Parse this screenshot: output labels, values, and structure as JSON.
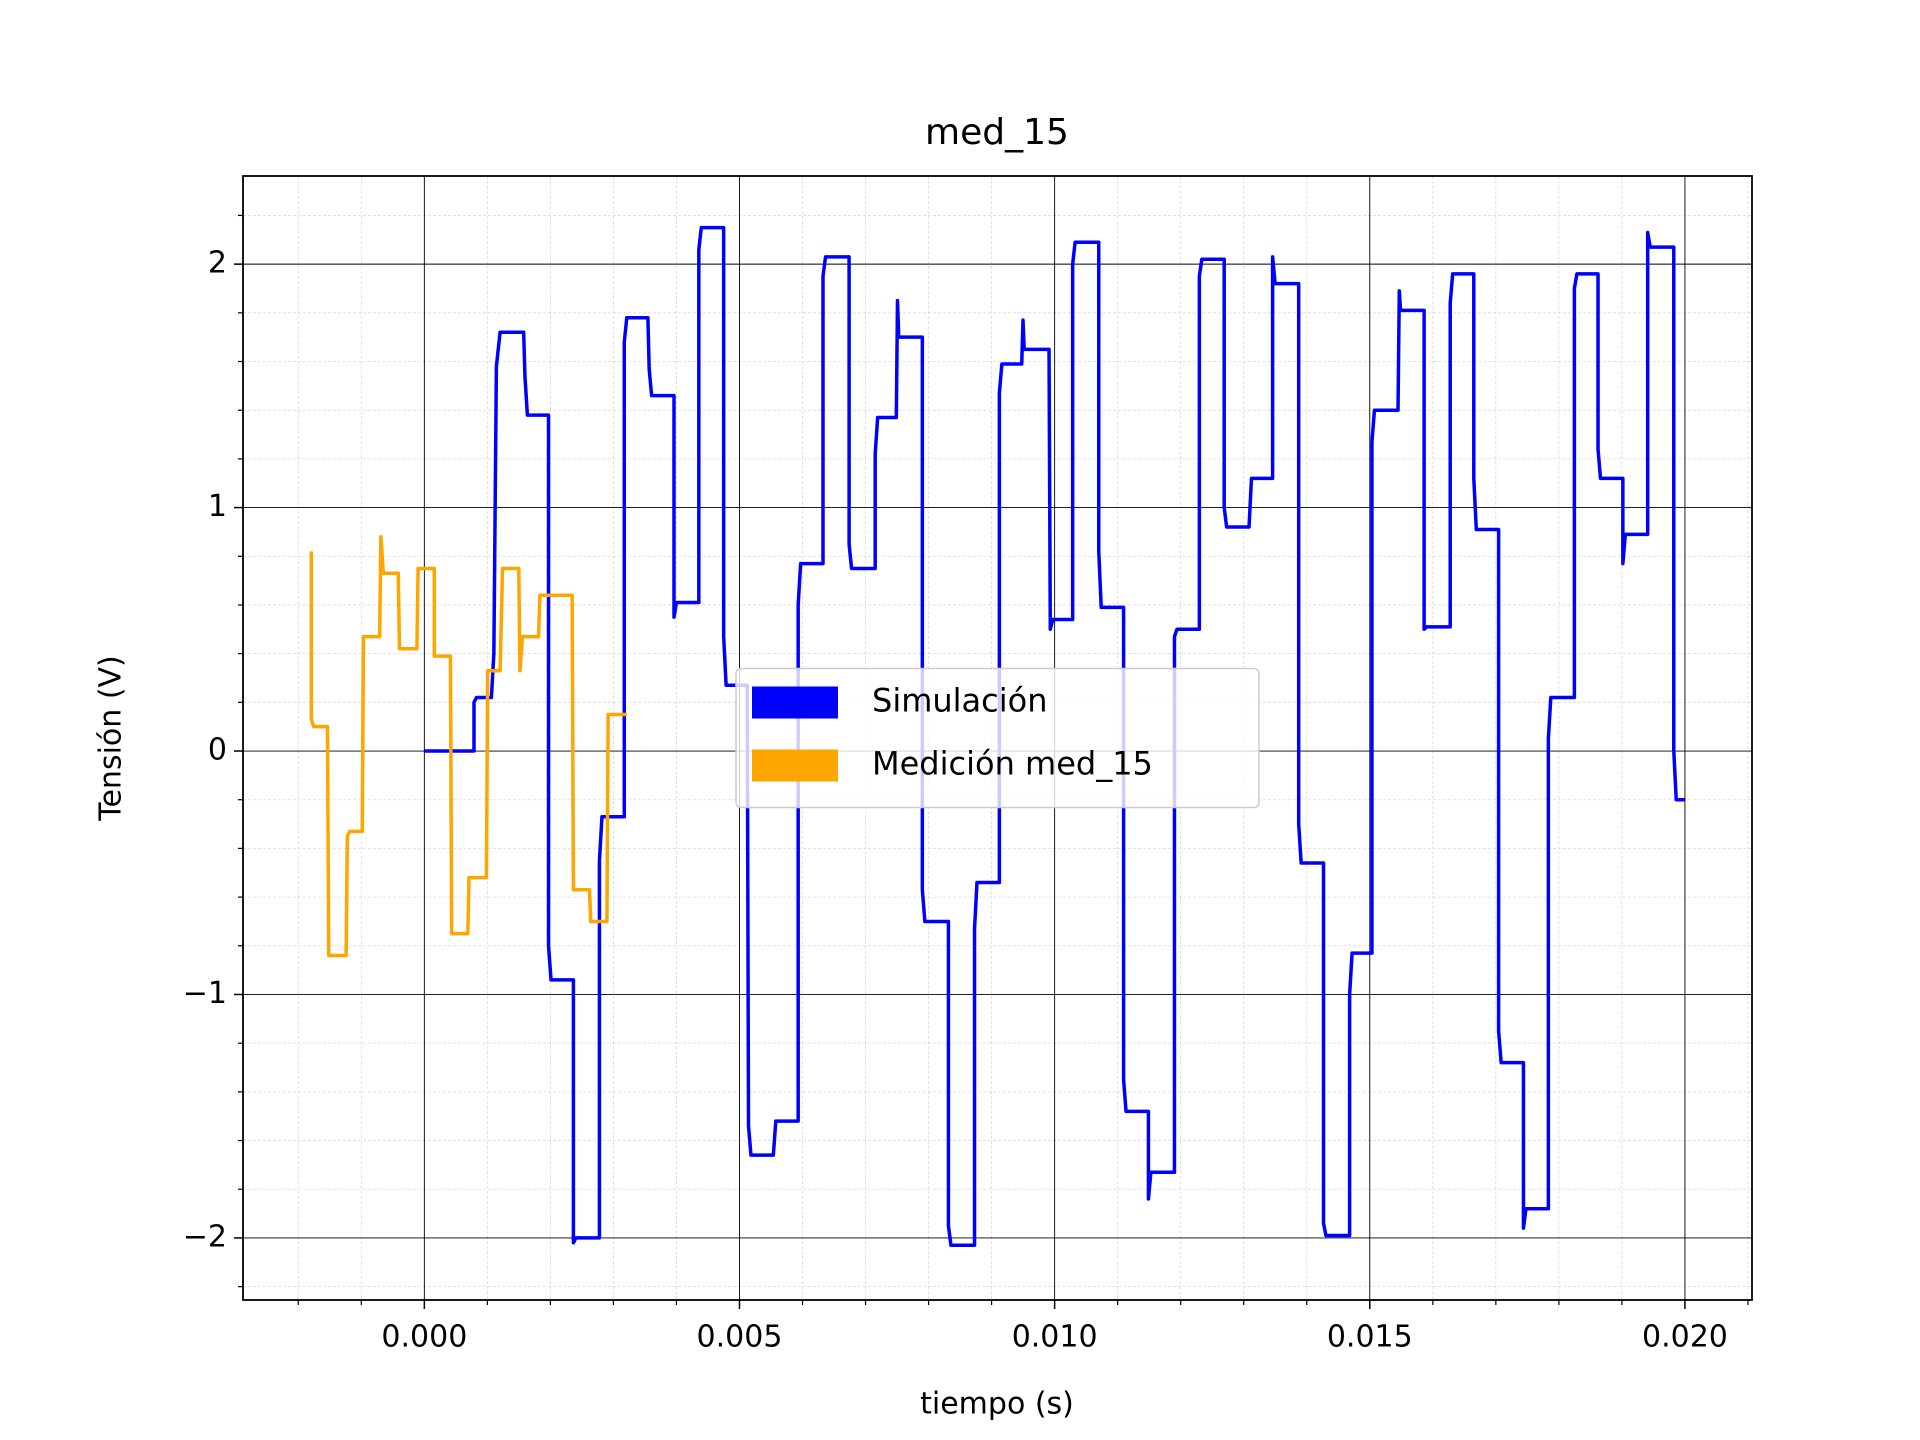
{
  "chart_data": {
    "type": "line",
    "title": "med_15",
    "x_label": "tiempo (s)",
    "y_label": "Tensión (V)",
    "xlim": [
      -0.002877,
      0.021064
    ],
    "ylim": [
      -2.255,
      2.362
    ],
    "xticks": [
      {
        "value": 0,
        "label": "0.000"
      },
      {
        "value": 0.005,
        "label": "0.005"
      },
      {
        "value": 0.01,
        "label": "0.010"
      },
      {
        "value": 0.015,
        "label": "0.015"
      },
      {
        "value": 0.02,
        "label": "0.020"
      }
    ],
    "yticks": [
      {
        "value": -2,
        "label": "−2"
      },
      {
        "value": -1,
        "label": "−1"
      },
      0,
      1,
      2
    ],
    "xminorticks": [
      -0.002,
      -0.001,
      0.001,
      0.002,
      0.003,
      0.004,
      0.006,
      0.007,
      0.008,
      0.009,
      0.011,
      0.012,
      0.013,
      0.014,
      0.016,
      0.017,
      0.018,
      0.019,
      0.021
    ],
    "yminorticks": [
      -2.2,
      -1.8,
      -1.6,
      -1.4,
      -1.2,
      -0.8,
      -0.6,
      -0.4,
      -0.2,
      0.2,
      0.4,
      0.6,
      0.8,
      1.2,
      1.4,
      1.6,
      1.8,
      2.2
    ],
    "grid": true,
    "legend_position": "center",
    "series": [
      {
        "name": "Simulación",
        "color": "#0000ff",
        "x": [
          0,
          0.000788,
          0.000788,
          0.000828,
          0.001064,
          0.001103,
          0.001143,
          0.001202,
          0.001576,
          0.001596,
          0.001635,
          0.00197,
          0.00197,
          0.00201,
          0.002365,
          0.002365,
          0.002404,
          0.002778,
          0.002778,
          0.002818,
          0.003172,
          0.003172,
          0.003212,
          0.003547,
          0.003567,
          0.003606,
          0.003961,
          0.003961,
          0.004,
          0.004355,
          0.004355,
          0.004394,
          0.004749,
          0.004749,
          0.004788,
          0.005123,
          0.005143,
          0.005182,
          0.005537,
          0.005576,
          0.005931,
          0.005931,
          0.00597,
          0.006325,
          0.006325,
          0.006365,
          0.006739,
          0.006739,
          0.006778,
          0.007153,
          0.007153,
          0.007192,
          0.007488,
          0.007507,
          0.007527,
          0.007901,
          0.007901,
          0.007941,
          0.008315,
          0.008315,
          0.008355,
          0.008729,
          0.008729,
          0.008768,
          0.009123,
          0.009123,
          0.009163,
          0.009478,
          0.009498,
          0.009517,
          0.009911,
          0.009931,
          0.00997,
          0.010286,
          0.010286,
          0.010325,
          0.0107,
          0.0107,
          0.010739,
          0.011094,
          0.011094,
          0.011133,
          0.011488,
          0.011488,
          0.011527,
          0.011901,
          0.011901,
          0.011941,
          0.012296,
          0.012296,
          0.012335,
          0.01269,
          0.01269,
          0.012729,
          0.013084,
          0.013123,
          0.013458,
          0.013458,
          0.013498,
          0.013872,
          0.013872,
          0.013911,
          0.014266,
          0.014266,
          0.014305,
          0.01468,
          0.01468,
          0.014719,
          0.015034,
          0.015034,
          0.015074,
          0.015448,
          0.015468,
          0.015488,
          0.015862,
          0.015862,
          0.015901,
          0.016276,
          0.016276,
          0.016315,
          0.01665,
          0.01665,
          0.01669,
          0.017044,
          0.017044,
          0.017084,
          0.017438,
          0.017438,
          0.017478,
          0.017833,
          0.017833,
          0.017872,
          0.018246,
          0.018246,
          0.018286,
          0.018621,
          0.018621,
          0.01866,
          0.019015,
          0.019015,
          0.019054,
          0.019409,
          0.019409,
          0.019448,
          0.019823,
          0.019823,
          0.019862,
          0.02
        ],
        "values": [
          0,
          0,
          0.2,
          0.22,
          0.22,
          0.4,
          1.58,
          1.72,
          1.72,
          1.54,
          1.38,
          1.38,
          -0.8,
          -0.94,
          -0.94,
          -2.02,
          -2.0,
          -2.0,
          -0.45,
          -0.27,
          -0.27,
          1.68,
          1.78,
          1.78,
          1.57,
          1.46,
          1.46,
          0.55,
          0.61,
          0.61,
          2.06,
          2.15,
          2.15,
          0.47,
          0.27,
          0.27,
          -1.54,
          -1.66,
          -1.66,
          -1.52,
          -1.52,
          0.6,
          0.77,
          0.77,
          1.95,
          2.03,
          2.03,
          0.85,
          0.75,
          0.75,
          1.22,
          1.37,
          1.37,
          1.85,
          1.7,
          1.7,
          -0.57,
          -0.7,
          -0.7,
          -1.95,
          -2.03,
          -2.03,
          -0.73,
          -0.54,
          -0.54,
          1.47,
          1.59,
          1.59,
          1.77,
          1.65,
          1.65,
          0.5,
          0.54,
          0.54,
          2.0,
          2.09,
          2.09,
          0.82,
          0.59,
          0.59,
          -1.35,
          -1.48,
          -1.48,
          -1.84,
          -1.73,
          -1.73,
          0.47,
          0.5,
          0.5,
          1.95,
          2.02,
          2.02,
          1.0,
          0.92,
          0.92,
          1.12,
          1.12,
          2.03,
          1.92,
          1.92,
          -0.3,
          -0.46,
          -0.46,
          -1.94,
          -1.99,
          -1.99,
          -1.0,
          -0.83,
          -0.83,
          1.27,
          1.4,
          1.4,
          1.89,
          1.81,
          1.81,
          0.5,
          0.51,
          0.51,
          1.84,
          1.96,
          1.96,
          1.12,
          0.91,
          0.91,
          -1.15,
          -1.28,
          -1.28,
          -1.96,
          -1.88,
          -1.88,
          0.05,
          0.22,
          0.22,
          1.9,
          1.96,
          1.96,
          1.24,
          1.12,
          1.12,
          0.77,
          0.89,
          0.89,
          2.13,
          2.07,
          2.07,
          0.0,
          -0.2,
          -0.2
        ]
      },
      {
        "name": "Medición med_15",
        "color": "#ffa500",
        "x": [
          -0.001793,
          -0.001793,
          -0.001754,
          -0.001537,
          -0.001517,
          -0.001241,
          -0.001222,
          -0.001182,
          -0.000985,
          -0.000966,
          -0.000709,
          -0.00069,
          -0.00065,
          -0.000414,
          -0.000394,
          -0.000118,
          -9.9e-05,
          0.000158,
          0.000158,
          0.000414,
          0.000433,
          0.00069,
          0.000709,
          0.000985,
          0.001005,
          0.001202,
          0.001241,
          0.001498,
          0.001517,
          0.001557,
          0.001813,
          0.001833,
          0.002345,
          0.002365,
          0.002621,
          0.00264,
          0.002897,
          0.002916,
          0.003212
        ],
        "values": [
          0.82,
          0.13,
          0.1,
          0.1,
          -0.84,
          -0.84,
          -0.35,
          -0.33,
          -0.33,
          0.47,
          0.47,
          0.88,
          0.73,
          0.73,
          0.42,
          0.42,
          0.75,
          0.75,
          0.39,
          0.39,
          -0.75,
          -0.75,
          -0.52,
          -0.52,
          0.33,
          0.33,
          0.75,
          0.75,
          0.33,
          0.47,
          0.47,
          0.64,
          0.64,
          -0.57,
          -0.57,
          -0.7,
          -0.7,
          0.15,
          0.15
        ]
      }
    ]
  }
}
